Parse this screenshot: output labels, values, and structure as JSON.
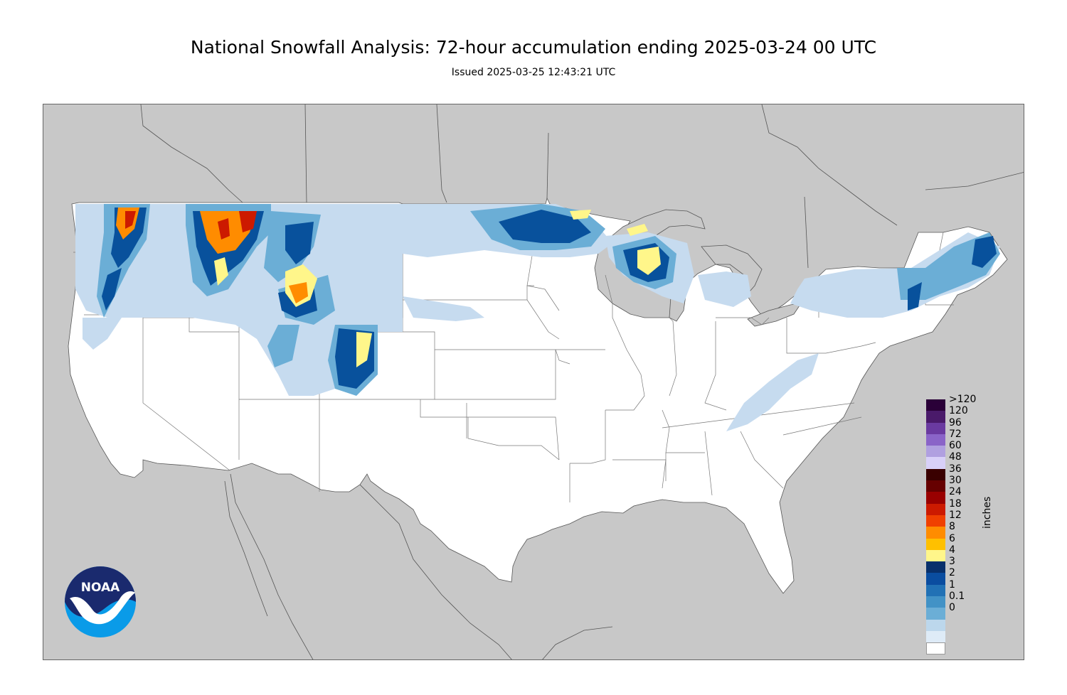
{
  "title": "National Snowfall Analysis: 72-hour accumulation ending 2025-03-24 00 UTC",
  "subtitle": "Issued 2025-03-25 12:43:21 UTC",
  "logo": {
    "text": "NOAA",
    "icon": "noaa-logo"
  },
  "colors": {
    "background": "#c8c8c8",
    "land": "#ffffff",
    "water": "#c8c8c8",
    "borders": "#555555"
  },
  "legend": {
    "units": "inches",
    "bins": [
      {
        "label": ">120",
        "color": "#2a0038"
      },
      {
        "label": "120",
        "color": "#4a1a6a"
      },
      {
        "label": "96",
        "color": "#6a3aa0"
      },
      {
        "label": "72",
        "color": "#8a64c8"
      },
      {
        "label": "60",
        "color": "#b0a0e0"
      },
      {
        "label": "48",
        "color": "#d8d0f8"
      },
      {
        "label": "36",
        "color": "#3a0000"
      },
      {
        "label": "30",
        "color": "#660000"
      },
      {
        "label": "24",
        "color": "#990000"
      },
      {
        "label": "18",
        "color": "#cc1a00"
      },
      {
        "label": "12",
        "color": "#f04000"
      },
      {
        "label": "8",
        "color": "#ff8c00"
      },
      {
        "label": "6",
        "color": "#ffc000"
      },
      {
        "label": "4",
        "color": "#fff68a"
      },
      {
        "label": "3",
        "color": "#08306b"
      },
      {
        "label": "2",
        "color": "#0a4da0"
      },
      {
        "label": "1",
        "color": "#2171b5"
      },
      {
        "label": "0.1",
        "color": "#4292c6"
      },
      {
        "label": "0",
        "color": "#6baed6"
      }
    ],
    "extra_colors": [
      "#bcd7ec",
      "#deebf7",
      "#ffffff"
    ]
  }
}
